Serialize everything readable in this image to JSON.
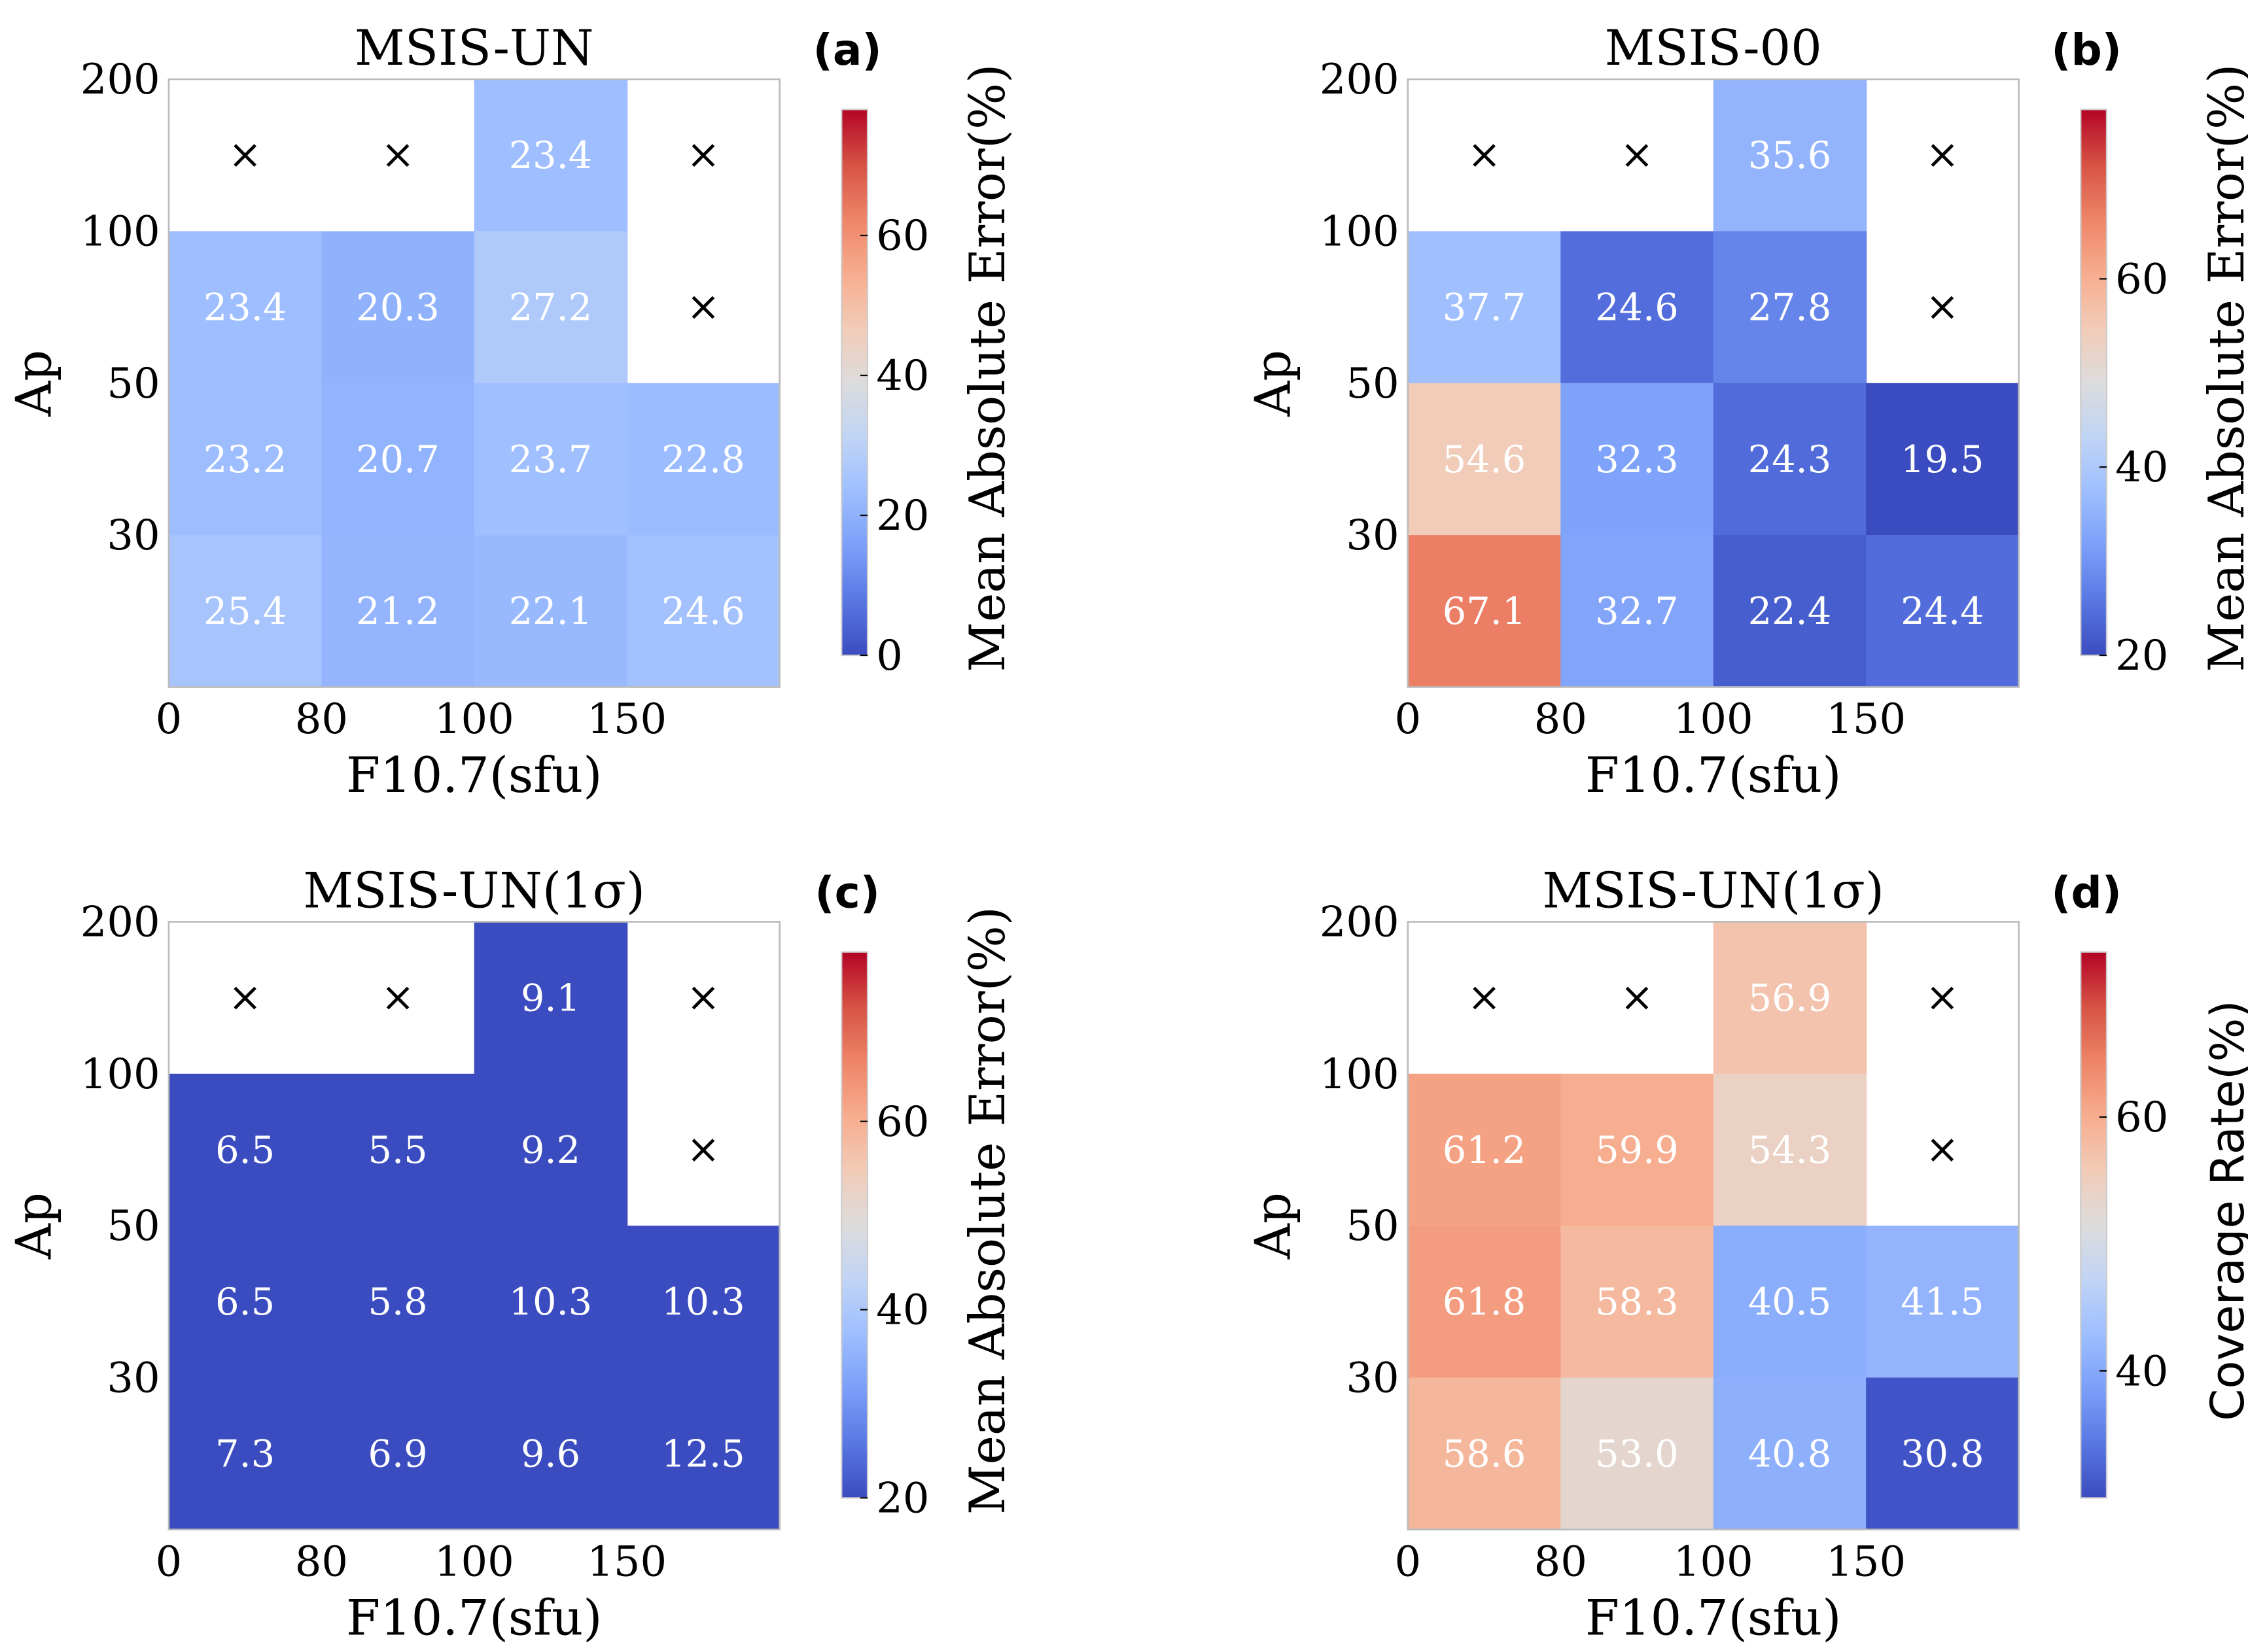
{
  "chart_data": [
    {
      "type": "heatmap",
      "panel_label": "(a)",
      "title": "MSIS-UN",
      "xlabel": "F10.7(sfu)",
      "ylabel": "Ap",
      "x_ticks": [
        "0",
        "80",
        "100",
        "150"
      ],
      "y_ticks": [
        "200",
        "100",
        "50",
        "30"
      ],
      "colorbar_label": "Mean Absolute Error(%)",
      "colorbar_ticks": [
        0,
        20,
        40,
        60
      ],
      "clim": [
        0,
        78
      ],
      "missing_marker": "×",
      "values": [
        [
          null,
          null,
          23.4,
          null
        ],
        [
          23.4,
          20.3,
          27.2,
          null
        ],
        [
          23.2,
          20.7,
          23.7,
          22.8
        ],
        [
          25.4,
          21.2,
          22.1,
          24.6
        ]
      ]
    },
    {
      "type": "heatmap",
      "panel_label": "(b)",
      "title": "MSIS-00",
      "xlabel": "F10.7(sfu)",
      "ylabel": "Ap",
      "x_ticks": [
        "0",
        "80",
        "100",
        "150"
      ],
      "y_ticks": [
        "200",
        "100",
        "50",
        "30"
      ],
      "colorbar_label": "Mean Absolute Error(%)",
      "colorbar_ticks": [
        20,
        40,
        60
      ],
      "clim": [
        20,
        78
      ],
      "missing_marker": "×",
      "values": [
        [
          null,
          null,
          35.6,
          null
        ],
        [
          37.7,
          24.6,
          27.8,
          null
        ],
        [
          54.6,
          32.3,
          24.3,
          19.5
        ],
        [
          67.1,
          32.7,
          22.4,
          24.4
        ]
      ]
    },
    {
      "type": "heatmap",
      "panel_label": "(c)",
      "title": "MSIS-UN(1σ)",
      "xlabel": "F10.7(sfu)",
      "ylabel": "Ap",
      "x_ticks": [
        "0",
        "80",
        "100",
        "150"
      ],
      "y_ticks": [
        "200",
        "100",
        "50",
        "30"
      ],
      "colorbar_label": "Mean Absolute Error(%)",
      "colorbar_ticks": [
        20,
        40,
        60
      ],
      "clim": [
        20,
        78
      ],
      "missing_marker": "×",
      "values": [
        [
          null,
          null,
          9.1,
          null
        ],
        [
          6.5,
          5.5,
          9.2,
          null
        ],
        [
          6.5,
          5.8,
          10.3,
          10.3
        ],
        [
          7.3,
          6.9,
          9.6,
          12.5
        ]
      ]
    },
    {
      "type": "heatmap",
      "panel_label": "(d)",
      "title": "MSIS-UN(1σ)",
      "xlabel": "F10.7(sfu)",
      "ylabel": "Ap",
      "x_ticks": [
        "0",
        "80",
        "100",
        "150"
      ],
      "y_ticks": [
        "200",
        "100",
        "50",
        "30"
      ],
      "colorbar_label": "Coverage Rate(%)",
      "colorbar_ticks": [
        40,
        60
      ],
      "clim": [
        30,
        73
      ],
      "missing_marker": "×",
      "values": [
        [
          null,
          null,
          56.9,
          null
        ],
        [
          61.2,
          59.9,
          54.3,
          null
        ],
        [
          61.8,
          58.3,
          40.5,
          41.5
        ],
        [
          58.6,
          53.0,
          40.8,
          30.8
        ]
      ]
    }
  ],
  "colormap": [
    "#3b4cc0",
    "#5977e3",
    "#7b9ff9",
    "#9ebeff",
    "#c0d4f5",
    "#dddcdc",
    "#f2cbb7",
    "#f7ac8e",
    "#ee8468",
    "#d65244",
    "#b40426"
  ]
}
